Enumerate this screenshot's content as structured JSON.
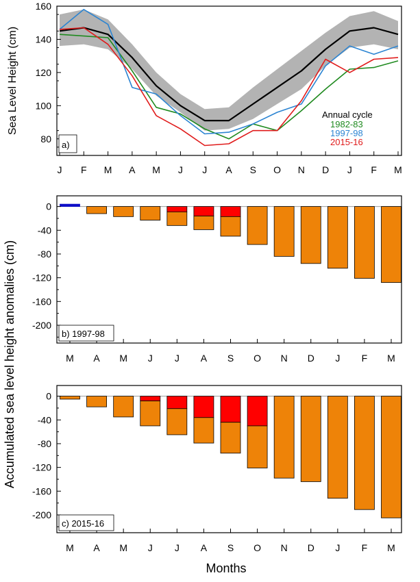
{
  "colors": {
    "band": "#b3b3b3",
    "mean": "#000000",
    "y1982": "#1f8a1f",
    "y1997": "#2b84d2",
    "y2015": "#e01b1b",
    "orange": "#ee8308",
    "red": "#ff0000",
    "blue": "#1010c8"
  },
  "shared": {
    "ylabel_bottom": "Accumulated sea level height anomalies (cm)",
    "xlabel": "Months"
  },
  "chart_data": [
    {
      "type": "line",
      "panel_label": "a)",
      "ylabel": "Sea Level Height (cm)",
      "xlabel": "",
      "categories": [
        "J",
        "F",
        "M",
        "A",
        "M",
        "J",
        "J",
        "A",
        "S",
        "O",
        "N",
        "D",
        "J",
        "F",
        "M"
      ],
      "ylim": [
        70,
        160
      ],
      "yticks": [
        80,
        100,
        120,
        140,
        160
      ],
      "legend": {
        "title": "Annual cycle",
        "placement": "lower-right"
      },
      "band": {
        "upper": [
          155,
          158,
          152,
          137,
          120,
          107,
          98,
          99,
          111,
          122,
          133,
          144,
          154,
          157,
          151
        ],
        "lower": [
          136,
          137,
          134,
          122,
          106,
          96,
          85,
          86,
          92,
          101,
          110,
          124,
          135,
          137,
          134
        ]
      },
      "series": [
        {
          "key": "mean",
          "values": [
            145,
            147,
            143,
            129,
            112,
            100,
            91,
            91,
            101,
            111,
            121,
            134,
            145,
            147,
            143
          ]
        },
        {
          "key": "y1982",
          "name": "1982-83",
          "values": [
            143,
            142,
            141,
            121,
            99,
            95,
            86,
            80,
            89,
            85,
            97,
            110,
            122,
            123,
            127
          ]
        },
        {
          "key": "y1997",
          "name": "1997-98",
          "values": [
            146,
            158,
            149,
            111,
            107,
            94,
            83,
            84,
            89,
            96,
            101,
            124,
            136,
            131,
            136
          ]
        },
        {
          "key": "y2015",
          "name": "2015-16",
          "values": [
            146,
            147,
            137,
            118,
            94,
            86,
            76,
            77,
            85,
            85,
            103,
            128,
            120,
            128,
            129
          ]
        }
      ]
    },
    {
      "type": "bar",
      "panel_label": "b) 1997-98",
      "xlabel": "",
      "categories": [
        "M",
        "A",
        "M",
        "J",
        "J",
        "A",
        "S",
        "O",
        "N",
        "D",
        "J",
        "F",
        "M"
      ],
      "ylim": [
        -230,
        18
      ],
      "yticks": [
        0,
        -40,
        -80,
        -120,
        -160,
        -200
      ],
      "orange_values": [
        4,
        -12,
        -17,
        -23,
        -32,
        -39,
        -50,
        -64,
        -84,
        -96,
        -104,
        -121,
        -128
      ],
      "red_values": [
        0,
        0,
        0,
        0,
        -9,
        -16,
        -17,
        0,
        0,
        0,
        0,
        0,
        0
      ]
    },
    {
      "type": "bar",
      "panel_label": "c) 2015-16",
      "xlabel": "Months",
      "categories": [
        "M",
        "A",
        "M",
        "J",
        "J",
        "A",
        "S",
        "O",
        "N",
        "D",
        "J",
        "F",
        "M"
      ],
      "ylim": [
        -230,
        18
      ],
      "yticks": [
        0,
        -40,
        -80,
        -120,
        -160,
        -200
      ],
      "orange_values": [
        -5,
        -18,
        -35,
        -50,
        -65,
        -79,
        -96,
        -121,
        -138,
        -144,
        -172,
        -191,
        -205
      ],
      "red_values": [
        0,
        0,
        0,
        -8,
        -21,
        -36,
        -44,
        -50,
        0,
        0,
        0,
        0,
        0
      ]
    }
  ]
}
